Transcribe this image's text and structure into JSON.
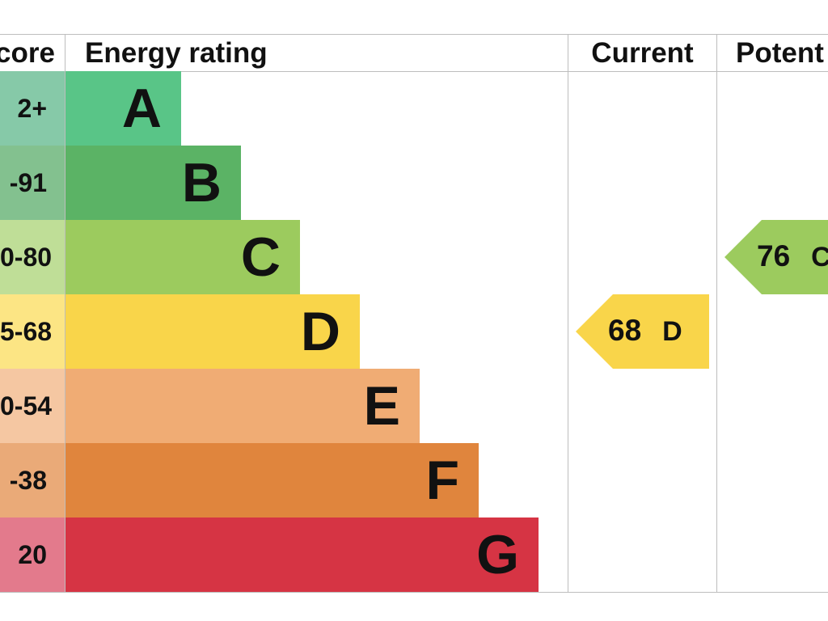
{
  "chart_data": {
    "type": "table",
    "columns": [
      "core",
      "Energy rating",
      "Current",
      "Potent"
    ],
    "bands": [
      {
        "score": "2+",
        "letter": "A",
        "band_color": "#59c587",
        "score_color": "#86c9a8"
      },
      {
        "score": "-91",
        "letter": "B",
        "band_color": "#5bb365",
        "score_color": "#83c18f"
      },
      {
        "score": "0-80",
        "letter": "C",
        "band_color": "#9ccb5e",
        "score_color": "#bfde97"
      },
      {
        "score": "5-68",
        "letter": "D",
        "band_color": "#f9d54a",
        "score_color": "#fce584"
      },
      {
        "score": "0-54",
        "letter": "E",
        "band_color": "#f0ac74",
        "score_color": "#f5c7a2"
      },
      {
        "score": "-38",
        "letter": "F",
        "band_color": "#e0853d",
        "score_color": "#eaaa78"
      },
      {
        "score": "20",
        "letter": "G",
        "band_color": "#d63444",
        "score_color": "#e37a8c"
      }
    ],
    "current": {
      "value": "68",
      "letter": "D",
      "color": "#f9d54a"
    },
    "potential": {
      "value": "76",
      "letter": "C",
      "color": "#9ccb5e"
    }
  }
}
